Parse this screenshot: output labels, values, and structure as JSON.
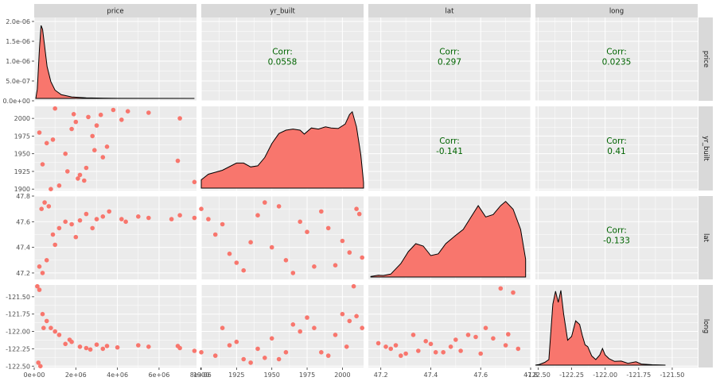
{
  "chart_data": {
    "type": "scatter",
    "variables": [
      "price",
      "yr_built",
      "lat",
      "long"
    ],
    "strip_labels": {
      "top": [
        "price",
        "yr_built",
        "lat",
        "long"
      ],
      "right": [
        "price",
        "yr_built",
        "lat",
        "long"
      ]
    },
    "colors": {
      "fill": "#F8766D",
      "panel_bg": "#EBEBEB",
      "strip_bg": "#D9D9D9",
      "corr_text": "#006400"
    },
    "grid": true,
    "x_axes": [
      {
        "var": "price",
        "range": [
          0,
          7800000
        ],
        "ticks": [
          0,
          2000000,
          4000000,
          6000000,
          8000000
        ],
        "tick_labels": [
          "0e+00",
          "2e+06",
          "4e+06",
          "6e+06",
          "8e+06"
        ]
      },
      {
        "var": "yr_built",
        "range": [
          1900,
          2015
        ],
        "ticks": [
          1900,
          1925,
          1950,
          1975,
          2000
        ],
        "tick_labels": [
          "1900",
          "1925",
          "1950",
          "1975",
          "2000"
        ]
      },
      {
        "var": "lat",
        "range": [
          47.15,
          47.8
        ],
        "ticks": [
          47.2,
          47.4,
          47.6,
          47.8
        ],
        "tick_labels": [
          "47.2",
          "47.4",
          "47.6",
          "47.8"
        ]
      },
      {
        "var": "long",
        "range": [
          -122.52,
          -121.31
        ],
        "ticks": [
          -122.5,
          -122.25,
          -122.0,
          -121.75,
          -121.5
        ],
        "tick_labels": [
          "-122.50",
          "-122.25",
          "-122.00",
          "-121.75",
          "-121.50"
        ]
      }
    ],
    "y_axes": [
      {
        "var": "price",
        "range": [
          0,
          2.1e-06
        ],
        "ticks": [
          0,
          5e-07,
          1e-06,
          1.5e-06,
          2e-06
        ],
        "tick_labels": [
          "0.0e+00",
          "5.0e-07",
          "1.0e-06",
          "1.5e-06",
          "2.0e-06"
        ]
      },
      {
        "var": "yr_built",
        "range": [
          1898,
          2017
        ],
        "ticks": [
          1900,
          1925,
          1950,
          1975,
          2000
        ],
        "tick_labels": [
          "1900",
          "1925",
          "1950",
          "1975",
          "2000"
        ]
      },
      {
        "var": "lat",
        "range": [
          47.15,
          47.8
        ],
        "ticks": [
          47.2,
          47.4,
          47.6,
          47.8
        ],
        "tick_labels": [
          "47.2",
          "47.4",
          "47.6",
          "47.8"
        ]
      },
      {
        "var": "long",
        "range": [
          -122.52,
          -121.33
        ],
        "ticks": [
          -122.5,
          -122.25,
          -122.0,
          -121.75,
          -121.5
        ],
        "tick_labels": [
          "-122.50",
          "-122.25",
          "-122.00",
          "-121.75",
          "-121.50"
        ]
      }
    ],
    "correlations": [
      {
        "row": "price",
        "col": "yr_built",
        "label": "Corr:",
        "value": "0.0558"
      },
      {
        "row": "price",
        "col": "lat",
        "label": "Corr:",
        "value": "0.297"
      },
      {
        "row": "price",
        "col": "long",
        "label": "Corr:",
        "value": "0.0235"
      },
      {
        "row": "yr_built",
        "col": "lat",
        "label": "Corr:",
        "value": "-0.141"
      },
      {
        "row": "yr_built",
        "col": "long",
        "label": "Corr:",
        "value": "0.41"
      },
      {
        "row": "lat",
        "col": "long",
        "label": "Corr:",
        "value": "-0.133"
      }
    ],
    "densities": [
      {
        "var": "price",
        "points": [
          [
            75000,
            0.0
          ],
          [
            150000,
            2.5e-07
          ],
          [
            250000,
            1.3e-06
          ],
          [
            330000,
            1.95e-06
          ],
          [
            400000,
            1.85e-06
          ],
          [
            500000,
            1.4e-06
          ],
          [
            620000,
            8.5e-07
          ],
          [
            800000,
            4.5e-07
          ],
          [
            1000000,
            2.2e-07
          ],
          [
            1300000,
            1e-07
          ],
          [
            1800000,
            4e-08
          ],
          [
            2500000,
            1.5e-08
          ],
          [
            4000000,
            3e-09
          ],
          [
            7700000,
            0.0
          ]
        ]
      },
      {
        "var": "yr_built",
        "points": [
          [
            1900,
            0.0015
          ],
          [
            1905,
            0.0025
          ],
          [
            1915,
            0.0032
          ],
          [
            1925,
            0.0045
          ],
          [
            1930,
            0.0045
          ],
          [
            1935,
            0.0038
          ],
          [
            1940,
            0.004
          ],
          [
            1945,
            0.0055
          ],
          [
            1950,
            0.008
          ],
          [
            1955,
            0.0098
          ],
          [
            1960,
            0.0104
          ],
          [
            1965,
            0.0106
          ],
          [
            1970,
            0.0104
          ],
          [
            1973,
            0.0097
          ],
          [
            1978,
            0.0108
          ],
          [
            1983,
            0.0106
          ],
          [
            1988,
            0.011
          ],
          [
            1992,
            0.0108
          ],
          [
            1997,
            0.0107
          ],
          [
            2002,
            0.0115
          ],
          [
            2005,
            0.0132
          ],
          [
            2007,
            0.0137
          ],
          [
            2010,
            0.011
          ],
          [
            2013,
            0.006
          ],
          [
            2015,
            0.001
          ]
        ]
      },
      {
        "var": "lat",
        "points": [
          [
            47.16,
            0.02
          ],
          [
            47.19,
            0.06
          ],
          [
            47.21,
            0.05
          ],
          [
            47.24,
            0.1
          ],
          [
            47.28,
            0.45
          ],
          [
            47.31,
            0.85
          ],
          [
            47.34,
            1.12
          ],
          [
            47.37,
            1.04
          ],
          [
            47.4,
            0.72
          ],
          [
            47.43,
            0.78
          ],
          [
            47.46,
            1.12
          ],
          [
            47.5,
            1.4
          ],
          [
            47.53,
            1.6
          ],
          [
            47.56,
            2.0
          ],
          [
            47.59,
            2.4
          ],
          [
            47.62,
            2.02
          ],
          [
            47.65,
            2.1
          ],
          [
            47.68,
            2.4
          ],
          [
            47.7,
            2.54
          ],
          [
            47.73,
            2.28
          ],
          [
            47.76,
            1.6
          ],
          [
            47.78,
            0.6
          ]
        ]
      },
      {
        "var": "long",
        "points": [
          [
            -122.52,
            0.0
          ],
          [
            -122.49,
            0.04
          ],
          [
            -122.45,
            0.15
          ],
          [
            -122.42,
            0.3
          ],
          [
            -122.39,
            3.3
          ],
          [
            -122.37,
            4.0
          ],
          [
            -122.35,
            3.4
          ],
          [
            -122.33,
            4.05
          ],
          [
            -122.31,
            2.8
          ],
          [
            -122.28,
            1.35
          ],
          [
            -122.25,
            1.55
          ],
          [
            -122.22,
            2.4
          ],
          [
            -122.19,
            2.2
          ],
          [
            -122.17,
            1.6
          ],
          [
            -122.15,
            1.1
          ],
          [
            -122.13,
            1.0
          ],
          [
            -122.1,
            0.5
          ],
          [
            -122.07,
            0.3
          ],
          [
            -122.04,
            0.55
          ],
          [
            -122.02,
            0.9
          ],
          [
            -122.0,
            0.55
          ],
          [
            -121.97,
            0.35
          ],
          [
            -121.93,
            0.2
          ],
          [
            -121.88,
            0.22
          ],
          [
            -121.83,
            0.1
          ],
          [
            -121.77,
            0.18
          ],
          [
            -121.73,
            0.06
          ],
          [
            -121.65,
            0.02
          ],
          [
            -121.55,
            0.0
          ]
        ]
      }
    ],
    "scatter": [
      {
        "row": "yr_built",
        "col": "price",
        "x": [
          7700000,
          6900000,
          7000000,
          5500000,
          4500000,
          3200000,
          3000000,
          2800000,
          3500000,
          2500000,
          2200000,
          2000000,
          1800000,
          1500000,
          1200000,
          1000000,
          800000,
          600000,
          400000,
          250000,
          2600000,
          3300000,
          2100000,
          1600000,
          900000,
          3800000,
          2900000,
          4200000,
          2400000,
          1900000
        ],
        "y": [
          1910,
          1940,
          2000,
          2008,
          2010,
          2005,
          1990,
          1975,
          1960,
          1930,
          1920,
          1995,
          1985,
          1950,
          1905,
          2014,
          1900,
          1965,
          1935,
          1980,
          2002,
          1945,
          1915,
          1925,
          1970,
          2012,
          1955,
          1998,
          1912,
          2006
        ]
      },
      {
        "row": "lat",
        "col": "price",
        "x": [
          7700000,
          7000000,
          6600000,
          5500000,
          5000000,
          4200000,
          3300000,
          3000000,
          2500000,
          2200000,
          1800000,
          1500000,
          1200000,
          900000,
          600000,
          400000,
          250000,
          350000,
          500000,
          700000,
          2800000,
          3600000,
          1000000,
          4400000,
          2000000
        ],
        "y": [
          47.63,
          47.65,
          47.62,
          47.63,
          47.64,
          47.62,
          47.64,
          47.62,
          47.66,
          47.61,
          47.58,
          47.6,
          47.55,
          47.5,
          47.3,
          47.2,
          47.25,
          47.7,
          47.75,
          47.72,
          47.55,
          47.68,
          47.42,
          47.6,
          47.48
        ]
      },
      {
        "row": "long",
        "col": "price",
        "x": [
          7700000,
          7000000,
          6900000,
          5500000,
          5000000,
          4000000,
          3500000,
          3000000,
          2500000,
          2200000,
          1800000,
          1500000,
          1200000,
          1000000,
          800000,
          600000,
          400000,
          250000,
          150000,
          200000,
          300000,
          2700000,
          3300000,
          1700000,
          450000
        ],
        "y": [
          -122.28,
          -122.24,
          -122.21,
          -122.22,
          -122.2,
          -122.23,
          -122.21,
          -122.19,
          -122.24,
          -122.22,
          -122.15,
          -122.18,
          -122.05,
          -122.0,
          -121.95,
          -121.85,
          -121.75,
          -121.4,
          -121.35,
          -122.45,
          -122.5,
          -122.26,
          -122.25,
          -122.12,
          -121.95
        ]
      },
      {
        "row": "lat",
        "col": "yr_built",
        "x": [
          1900,
          1910,
          1920,
          1930,
          1940,
          1950,
          1960,
          1970,
          1980,
          1990,
          2000,
          2010,
          2014,
          1905,
          1925,
          1945,
          1965,
          1985,
          2005,
          1915,
          1935,
          1955,
          1975,
          1995,
          2012
        ],
        "y": [
          47.7,
          47.5,
          47.35,
          47.22,
          47.65,
          47.4,
          47.3,
          47.6,
          47.25,
          47.55,
          47.45,
          47.7,
          47.32,
          47.62,
          47.28,
          47.75,
          47.2,
          47.68,
          47.36,
          47.58,
          47.44,
          47.72,
          47.52,
          47.26,
          47.66
        ]
      },
      {
        "row": "long",
        "col": "yr_built",
        "x": [
          1900,
          1910,
          1920,
          1930,
          1940,
          1950,
          1960,
          1970,
          1980,
          1990,
          2000,
          2005,
          2010,
          2014,
          1915,
          1935,
          1955,
          1975,
          1995,
          2008,
          1925,
          1945,
          1965,
          1985,
          2003
        ],
        "y": [
          -122.3,
          -122.35,
          -122.2,
          -122.4,
          -122.25,
          -122.1,
          -122.3,
          -122.0,
          -121.95,
          -122.35,
          -121.75,
          -121.85,
          -121.78,
          -121.95,
          -121.95,
          -122.45,
          -122.4,
          -121.8,
          -122.05,
          -121.35,
          -122.15,
          -122.38,
          -121.9,
          -122.3,
          -122.22
        ]
      },
      {
        "row": "long",
        "col": "lat",
        "x": [
          47.19,
          47.22,
          47.26,
          47.3,
          47.35,
          47.4,
          47.45,
          47.5,
          47.55,
          47.6,
          47.65,
          47.7,
          47.75,
          47.68,
          47.73,
          47.28,
          47.33,
          47.42,
          47.52,
          47.62,
          47.58,
          47.48,
          47.38,
          47.24,
          47.71
        ],
        "y": [
          -122.17,
          -122.22,
          -122.2,
          -122.32,
          -122.28,
          -122.18,
          -122.3,
          -122.12,
          -122.05,
          -122.32,
          -122.1,
          -122.2,
          -122.25,
          -121.38,
          -121.44,
          -122.35,
          -122.05,
          -122.3,
          -122.28,
          -121.95,
          -122.08,
          -122.22,
          -122.14,
          -122.25,
          -122.04
        ]
      }
    ]
  }
}
